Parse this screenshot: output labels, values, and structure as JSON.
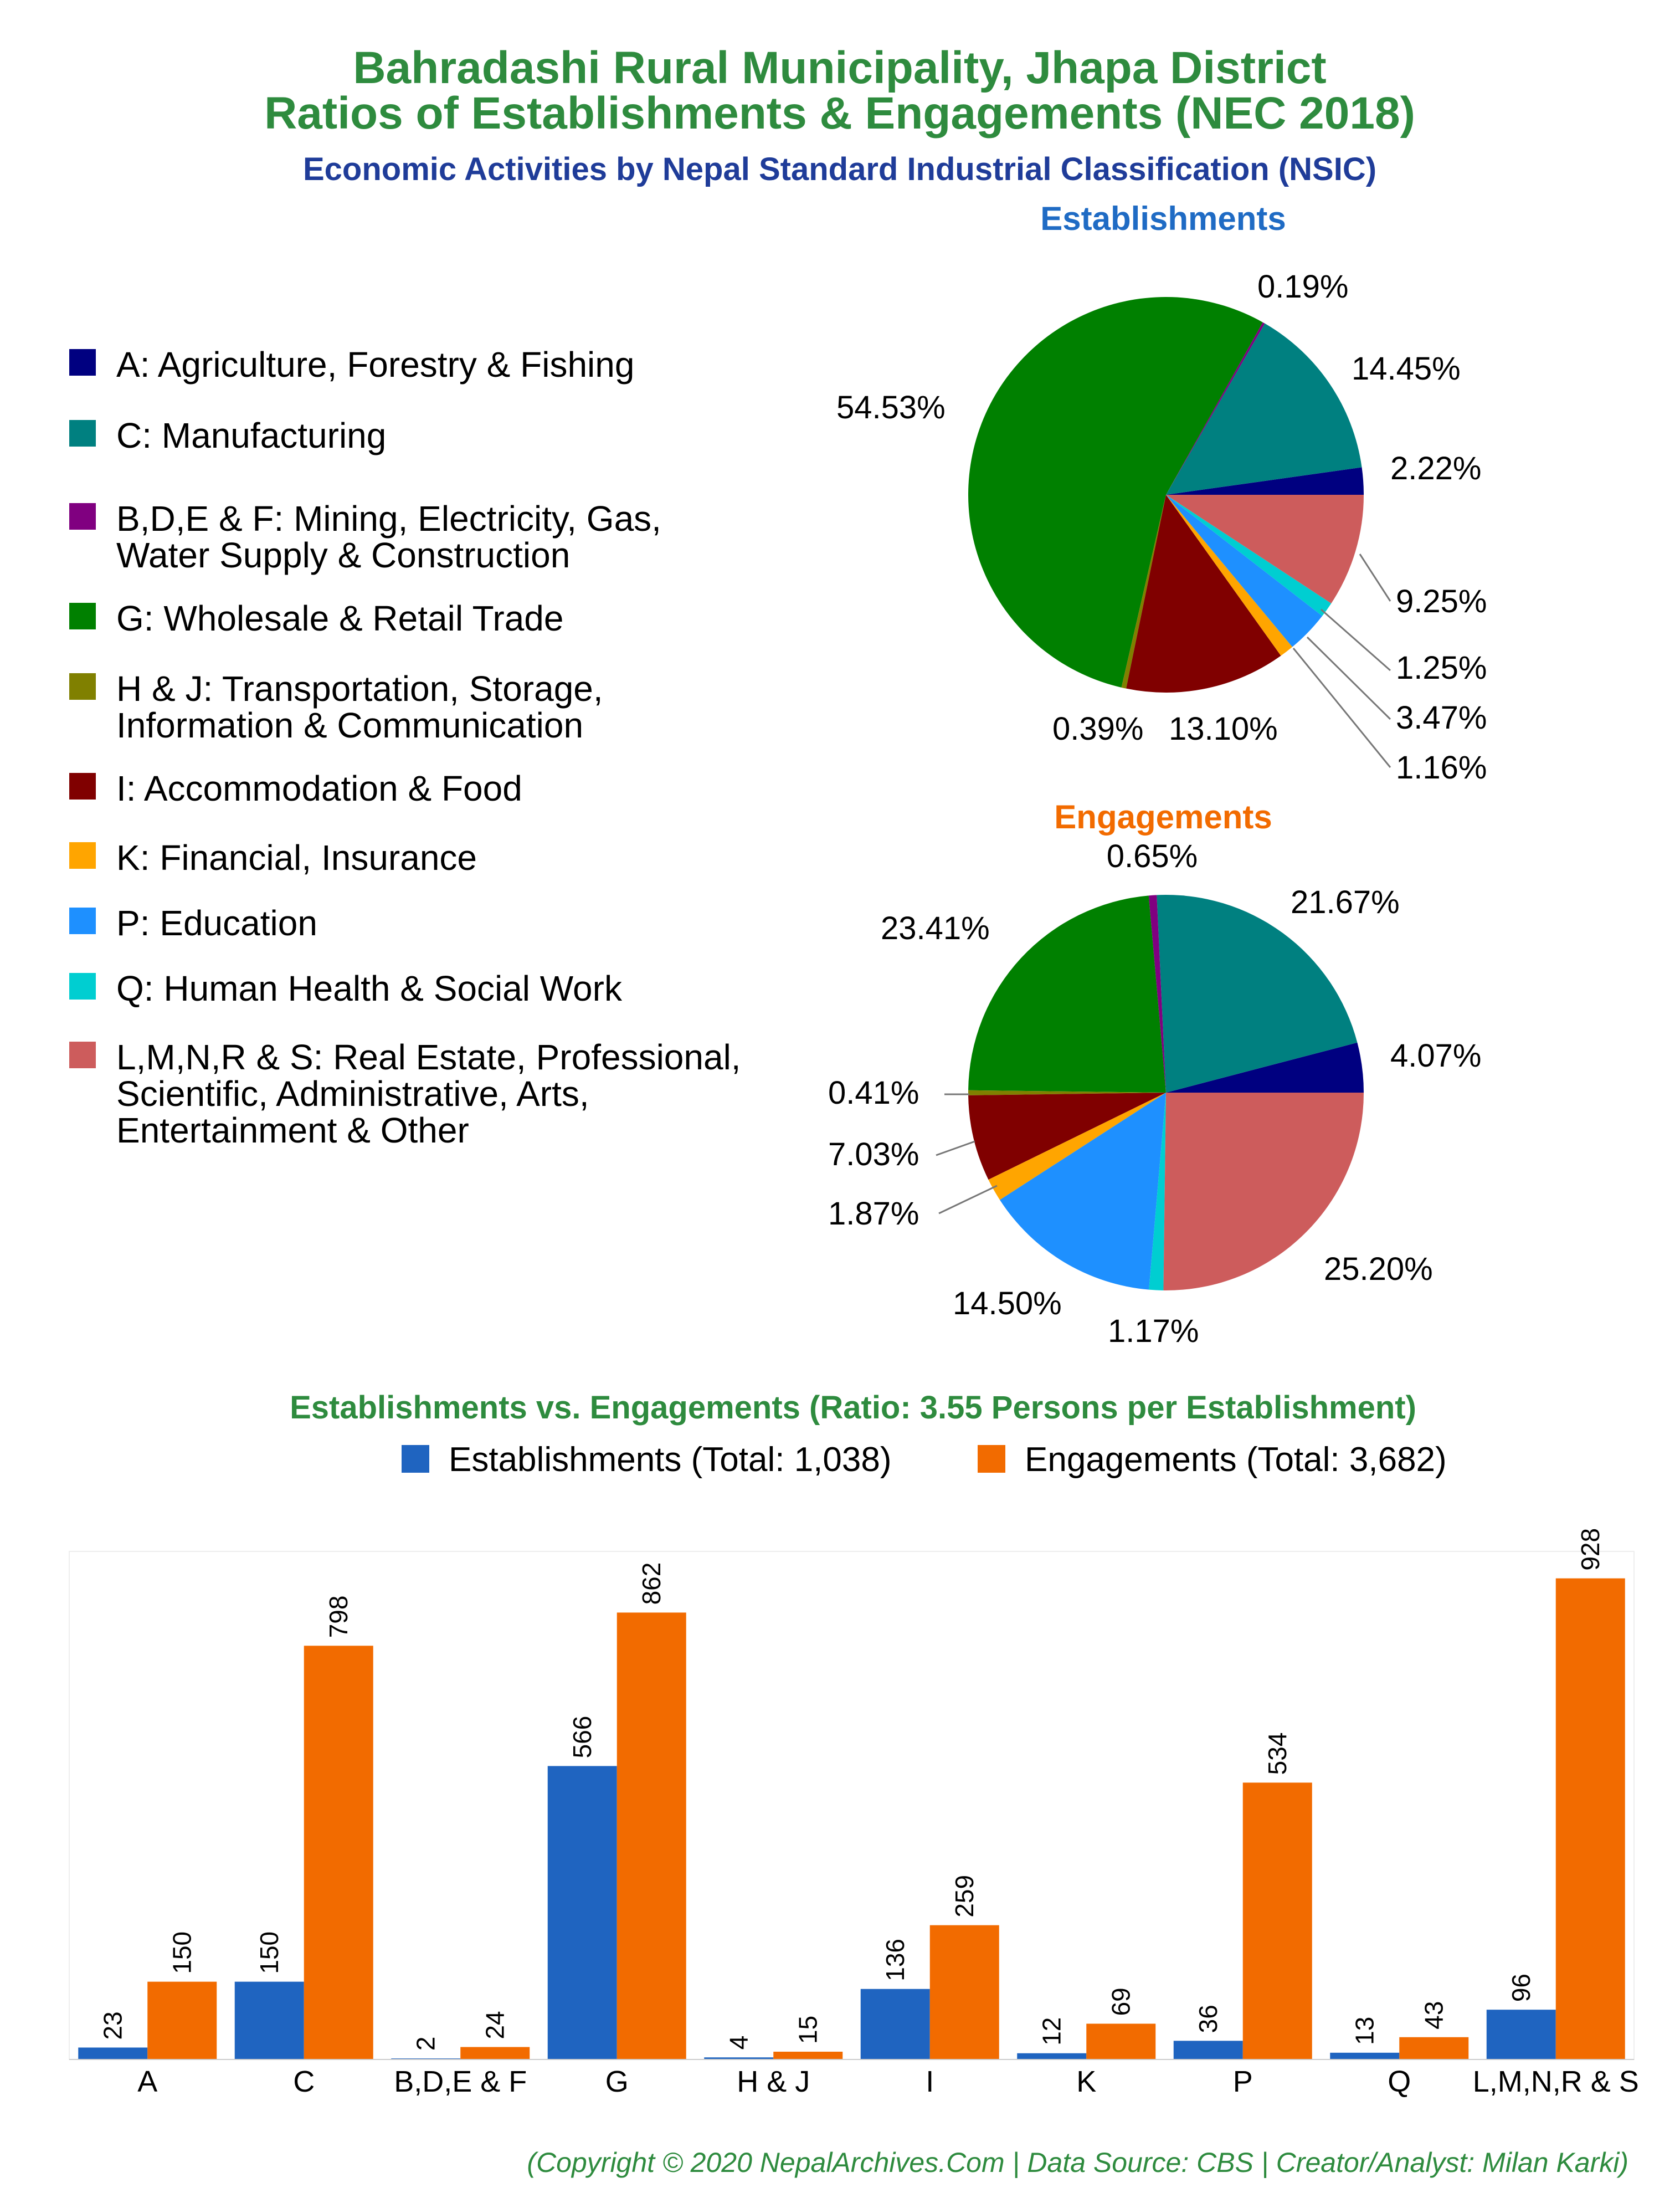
{
  "header": {
    "title_line1": "Bahradashi Rural Municipality, Jhapa District",
    "title_line2": "Ratios of Establishments & Engagements (NEC 2018)",
    "subtitle": "Economic Activities by Nepal Standard Industrial Classification (NSIC)"
  },
  "legend": [
    {
      "lines": [
        "A: Agriculture, Forestry & Fishing"
      ],
      "color": "#000080"
    },
    {
      "lines": [
        "C: Manufacturing"
      ],
      "color": "#008080"
    },
    {
      "lines": [
        "B,D,E & F: Mining, Electricity, Gas,",
        "Water Supply & Construction"
      ],
      "color": "#800080"
    },
    {
      "lines": [
        "G: Wholesale & Retail Trade"
      ],
      "color": "#008000"
    },
    {
      "lines": [
        "H & J: Transportation, Storage,",
        "Information & Communication"
      ],
      "color": "#808000"
    },
    {
      "lines": [
        "I: Accommodation & Food"
      ],
      "color": "#800000"
    },
    {
      "lines": [
        "K: Financial, Insurance"
      ],
      "color": "#ffa500"
    },
    {
      "lines": [
        "P: Education"
      ],
      "color": "#1e90ff"
    },
    {
      "lines": [
        "Q: Human Health & Social Work"
      ],
      "color": "#00ced1"
    },
    {
      "lines": [
        "L,M,N,R & S: Real Estate, Professional,",
        "Scientific, Administrative, Arts,",
        "Entertainment & Other"
      ],
      "color": "#cd5c5c"
    }
  ],
  "chart_data": [
    {
      "type": "pie",
      "title": "Establishments",
      "labels": [
        "A",
        "C",
        "B,D,E & F",
        "G",
        "H & J",
        "I",
        "K",
        "P",
        "Q",
        "L,M,N,R & S"
      ],
      "values": [
        2.22,
        14.45,
        0.19,
        54.53,
        0.39,
        13.1,
        1.16,
        3.47,
        1.25,
        9.25
      ],
      "value_labels": [
        "2.22%",
        "14.45%",
        "0.19%",
        "54.53%",
        "0.39%",
        "13.10%",
        "1.16%",
        "3.47%",
        "1.25%",
        "9.25%"
      ],
      "colors": [
        "#000080",
        "#008080",
        "#800080",
        "#008000",
        "#808000",
        "#800000",
        "#ffa500",
        "#1e90ff",
        "#00ced1",
        "#cd5c5c"
      ]
    },
    {
      "type": "pie",
      "title": "Engagements",
      "labels": [
        "A",
        "C",
        "B,D,E & F",
        "G",
        "H & J",
        "I",
        "K",
        "P",
        "Q",
        "L,M,N,R & S"
      ],
      "values": [
        4.07,
        21.67,
        0.65,
        23.41,
        0.41,
        7.03,
        1.87,
        14.5,
        1.17,
        25.2
      ],
      "value_labels": [
        "4.07%",
        "21.67%",
        "0.65%",
        "23.41%",
        "0.41%",
        "7.03%",
        "1.87%",
        "14.50%",
        "1.17%",
        "25.20%"
      ],
      "colors": [
        "#000080",
        "#008080",
        "#800080",
        "#008000",
        "#808000",
        "#800000",
        "#ffa500",
        "#1e90ff",
        "#00ced1",
        "#cd5c5c"
      ]
    },
    {
      "type": "bar",
      "title": "Establishments vs. Engagements (Ratio: 3.55 Persons per Establishment)",
      "categories": [
        "A",
        "C",
        "B,D,E & F",
        "G",
        "H & J",
        "I",
        "K",
        "P",
        "Q",
        "L,M,N,R & S"
      ],
      "series": [
        {
          "name": "Establishments (Total: 1,038)",
          "color": "#1f64c0",
          "values": [
            23,
            150,
            2,
            566,
            4,
            136,
            12,
            36,
            13,
            96
          ]
        },
        {
          "name": "Engagements (Total: 3,682)",
          "color": "#f26b00",
          "values": [
            150,
            798,
            24,
            862,
            15,
            259,
            69,
            534,
            43,
            928
          ]
        }
      ],
      "ylim": [
        0,
        980
      ]
    }
  ],
  "footer": "(Copyright © 2020 NepalArchives.Com | Data Source: CBS | Creator/Analyst: Milan Karki)"
}
